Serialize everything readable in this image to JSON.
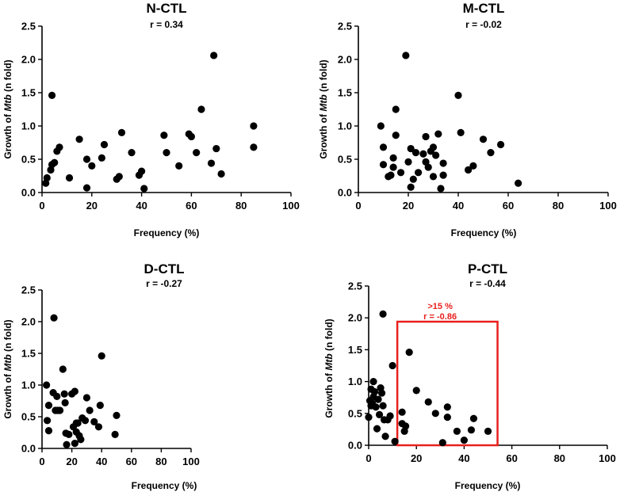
{
  "chart_data": [
    {
      "type": "scatter",
      "title": "N-CTL",
      "subtitle": "r = 0.34",
      "xlabel": "Frequency (%)",
      "ylabel": "Growth of Mtb (n fold)",
      "ylabel_parts": [
        "Growth of ",
        "Mtb",
        " (n fold)"
      ],
      "xlim": [
        0,
        100
      ],
      "ylim": [
        0,
        2.5
      ],
      "xticks": [
        0,
        20,
        40,
        60,
        80,
        100
      ],
      "yticks": [
        "0.0",
        "0.5",
        "1.0",
        "1.5",
        "2.0",
        "2.5"
      ],
      "points": [
        [
          1.5,
          0.14
        ],
        [
          2,
          0.22
        ],
        [
          3.5,
          0.34
        ],
        [
          4,
          0.42
        ],
        [
          4,
          1.46
        ],
        [
          5,
          0.45
        ],
        [
          6,
          0.62
        ],
        [
          7,
          0.68
        ],
        [
          11,
          0.22
        ],
        [
          15,
          0.8
        ],
        [
          18,
          0.5
        ],
        [
          18,
          0.07
        ],
        [
          20,
          0.4
        ],
        [
          24,
          0.52
        ],
        [
          25,
          0.72
        ],
        [
          30,
          0.2
        ],
        [
          31,
          0.24
        ],
        [
          32,
          0.9
        ],
        [
          36,
          0.6
        ],
        [
          39,
          0.26
        ],
        [
          40,
          0.32
        ],
        [
          41,
          0.06
        ],
        [
          49,
          0.86
        ],
        [
          50,
          0.6
        ],
        [
          55,
          0.4
        ],
        [
          59,
          0.88
        ],
        [
          60,
          0.84
        ],
        [
          62,
          0.6
        ],
        [
          64,
          1.25
        ],
        [
          68,
          0.44
        ],
        [
          69,
          2.06
        ],
        [
          70,
          0.66
        ],
        [
          72,
          0.28
        ],
        [
          85,
          1.0
        ],
        [
          85,
          0.68
        ]
      ]
    },
    {
      "type": "scatter",
      "title": "M-CTL",
      "subtitle": "r = -0.02",
      "xlabel": "Frequency (%)",
      "ylabel": "Growth of Mtb (n fold)",
      "ylabel_parts": [
        "Growth of ",
        "Mtb",
        " (n fold)"
      ],
      "xlim": [
        0,
        100
      ],
      "ylim": [
        0,
        2.5
      ],
      "xticks": [
        0,
        20,
        40,
        60,
        80,
        100
      ],
      "yticks": [
        "0.0",
        "0.5",
        "1.0",
        "1.5",
        "2.0",
        "2.5"
      ],
      "points": [
        [
          9,
          1.0
        ],
        [
          10,
          0.68
        ],
        [
          10,
          0.42
        ],
        [
          12,
          0.24
        ],
        [
          13,
          0.26
        ],
        [
          14,
          0.52
        ],
        [
          14,
          0.38
        ],
        [
          15,
          1.25
        ],
        [
          15,
          0.86
        ],
        [
          17,
          0.3
        ],
        [
          19,
          2.06
        ],
        [
          20,
          0.46
        ],
        [
          21,
          0.66
        ],
        [
          21,
          0.08
        ],
        [
          22,
          0.2
        ],
        [
          23,
          0.6
        ],
        [
          24,
          0.3
        ],
        [
          26,
          0.58
        ],
        [
          27,
          0.84
        ],
        [
          27,
          0.46
        ],
        [
          28,
          0.38
        ],
        [
          29,
          0.62
        ],
        [
          30,
          0.68
        ],
        [
          30,
          0.24
        ],
        [
          31,
          0.56
        ],
        [
          32,
          0.88
        ],
        [
          33,
          0.06
        ],
        [
          34,
          0.44
        ],
        [
          34,
          0.26
        ],
        [
          40,
          1.46
        ],
        [
          41,
          0.9
        ],
        [
          44,
          0.34
        ],
        [
          46,
          0.4
        ],
        [
          50,
          0.8
        ],
        [
          53,
          0.6
        ],
        [
          57,
          0.72
        ],
        [
          64,
          0.14
        ]
      ]
    },
    {
      "type": "scatter",
      "title": "D-CTL",
      "subtitle": "r = -0.27",
      "xlabel": "Frequency (%)",
      "ylabel": "Growth of Mtb (n fold)",
      "ylabel_parts": [
        "Growth of ",
        "Mtb",
        " (n fold)"
      ],
      "xlim": [
        0,
        100
      ],
      "ylim": [
        0,
        2.5
      ],
      "xticks": [
        0,
        20,
        40,
        60,
        80,
        100
      ],
      "yticks": [
        "0.0",
        "0.5",
        "1.0",
        "1.5",
        "2.0",
        "2.5"
      ],
      "points": [
        [
          3,
          1.0
        ],
        [
          3.5,
          0.44
        ],
        [
          4.5,
          0.68
        ],
        [
          4.5,
          0.28
        ],
        [
          7.5,
          0.88
        ],
        [
          8,
          2.06
        ],
        [
          9,
          0.6
        ],
        [
          10,
          0.82
        ],
        [
          10.5,
          0.6
        ],
        [
          12,
          0.6
        ],
        [
          14,
          1.25
        ],
        [
          15,
          0.86
        ],
        [
          15.5,
          0.72
        ],
        [
          16,
          0.24
        ],
        [
          16.5,
          0.06
        ],
        [
          18,
          0.22
        ],
        [
          20,
          0.86
        ],
        [
          21,
          0.34
        ],
        [
          22,
          0.9
        ],
        [
          22,
          0.08
        ],
        [
          23,
          0.4
        ],
        [
          23,
          0.26
        ],
        [
          24,
          0.4
        ],
        [
          25,
          0.2
        ],
        [
          26,
          0.14
        ],
        [
          27,
          0.48
        ],
        [
          29,
          0.44
        ],
        [
          30,
          0.8
        ],
        [
          32,
          0.6
        ],
        [
          35,
          0.42
        ],
        [
          38,
          0.34
        ],
        [
          39,
          0.68
        ],
        [
          40,
          1.46
        ],
        [
          49,
          0.22
        ],
        [
          50,
          0.52
        ]
      ]
    },
    {
      "type": "scatter",
      "title": "P-CTL",
      "subtitle": "r = -0.44",
      "xlabel": "Frequency (%)",
      "ylabel": "Growth of Mtb (n fold)",
      "ylabel_parts": [
        "Growth of ",
        "Mtb",
        " (n fold)"
      ],
      "xlim": [
        0,
        100
      ],
      "ylim": [
        0,
        2.5
      ],
      "xticks": [
        0,
        20,
        40,
        60,
        80,
        100
      ],
      "yticks": [
        "0.0",
        "0.5",
        "1.0",
        "1.5",
        "2.0",
        "2.5"
      ],
      "annotation": {
        "label": ">15 %",
        "r": "r = -0.86",
        "color": "#e8201e",
        "x_range": [
          12,
          54
        ],
        "y_range": [
          0,
          1.94
        ]
      },
      "points": [
        [
          0,
          0.44
        ],
        [
          0.5,
          0.7
        ],
        [
          1,
          0.62
        ],
        [
          1,
          0.88
        ],
        [
          1.5,
          0.66
        ],
        [
          2,
          1.0
        ],
        [
          2,
          0.76
        ],
        [
          2.5,
          0.84
        ],
        [
          3,
          0.6
        ],
        [
          3.5,
          0.26
        ],
        [
          4,
          0.72
        ],
        [
          4.5,
          0.48
        ],
        [
          5,
          0.9
        ],
        [
          5.5,
          0.82
        ],
        [
          6,
          2.06
        ],
        [
          6,
          0.62
        ],
        [
          6.5,
          0.4
        ],
        [
          7,
          0.14
        ],
        [
          8,
          0.4
        ],
        [
          9,
          0.46
        ],
        [
          10,
          1.25
        ],
        [
          11,
          0.06
        ],
        [
          14,
          0.52
        ],
        [
          14,
          0.34
        ],
        [
          15,
          0.22
        ],
        [
          15.5,
          0.3
        ],
        [
          17,
          1.46
        ],
        [
          20,
          0.86
        ],
        [
          25,
          0.68
        ],
        [
          28,
          0.5
        ],
        [
          31,
          0.04
        ],
        [
          33,
          0.6
        ],
        [
          33,
          0.44
        ],
        [
          37,
          0.22
        ],
        [
          40,
          0.08
        ],
        [
          43,
          0.24
        ],
        [
          44,
          0.42
        ],
        [
          50,
          0.22
        ]
      ]
    }
  ]
}
